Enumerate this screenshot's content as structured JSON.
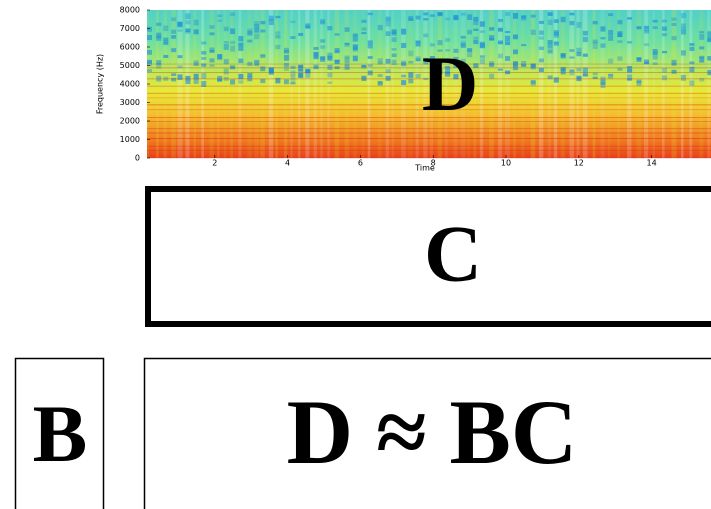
{
  "spectrogram": {
    "label": "D",
    "ylabel": "Frequency (Hz)",
    "xlabel": "Time",
    "yticks": [
      0,
      1000,
      2000,
      3000,
      4000,
      5000,
      6000,
      7000,
      8000
    ],
    "xticks": [
      2,
      4,
      6,
      8,
      10,
      12,
      14
    ]
  },
  "boxes": {
    "c": "C",
    "b": "B",
    "equation": "D ≈ BC"
  }
}
